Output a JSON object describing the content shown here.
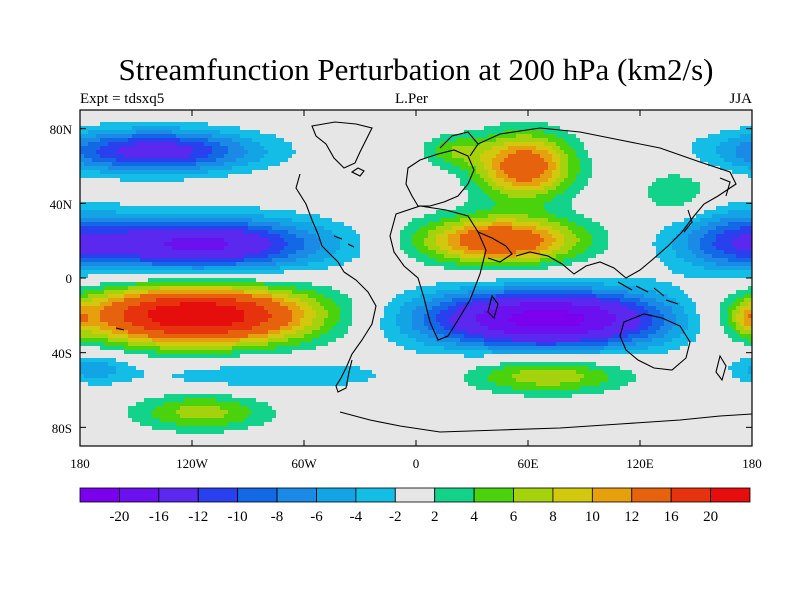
{
  "figure": {
    "title": "Streamfunction Perturbation at 200 hPa (km2/s)",
    "left_label": "Expt = tdsxq5",
    "center_label": "L.Per",
    "right_label": "JJA"
  },
  "axes": {
    "lon_ticks": [
      "180",
      "120W",
      "60W",
      "0",
      "60E",
      "120E",
      "180"
    ],
    "lat_ticks": [
      "80N",
      "40N",
      "0",
      "40S",
      "80S"
    ]
  },
  "colorbar": {
    "labels": [
      "-20",
      "-16",
      "-12",
      "-10",
      "-8",
      "-6",
      "-4",
      "-2",
      "2",
      "4",
      "6",
      "8",
      "10",
      "12",
      "16",
      "20"
    ],
    "colors": [
      "#7a00ee",
      "#6b10ee",
      "#5a28ee",
      "#2840ee",
      "#1368e6",
      "#1b8ae6",
      "#13a4e6",
      "#13bde6",
      "#e6e6e6",
      "#13d28a",
      "#4ad20d",
      "#a4d20d",
      "#d2c80d",
      "#e6a00d",
      "#e6620d",
      "#e6320d",
      "#e60d0d"
    ]
  },
  "map": {
    "lon_range": [
      -180,
      180
    ],
    "lat_range": [
      -90,
      90
    ],
    "field_levels": [
      -20,
      -16,
      -12,
      -10,
      -8,
      -6,
      -4,
      -2,
      2,
      4,
      6,
      8,
      10,
      12,
      16,
      20
    ]
  }
}
